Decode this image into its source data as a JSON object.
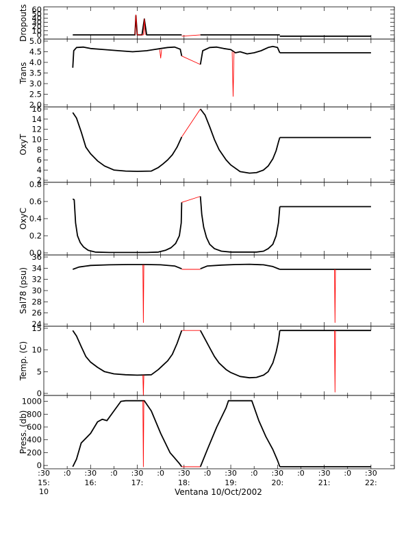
{
  "figure": {
    "footer": "Ventana 10/Oct/2002",
    "colors": {
      "data": "#000000",
      "gap": "#ff0000",
      "axes": "#000000"
    },
    "time_axis": {
      "ticks": [
        ":0 :30",
        ":0",
        ":30",
        ":0",
        ":30",
        ":0",
        ":30",
        ":0",
        ":30",
        ":0",
        ":30",
        ":0",
        ":30",
        ":0",
        ":30"
      ],
      "top_labels": [
        ":30",
        ":0",
        ":30",
        ":0",
        ":30",
        ":0",
        ":30",
        ":0",
        ":30",
        ":0",
        ":30",
        ":0",
        ":30",
        ":0",
        ":30"
      ],
      "hour_labels": [
        "15:\n10",
        "16:",
        "17:",
        "18:",
        "19:",
        "20:",
        "21:",
        "22:"
      ],
      "hour_label_line1": [
        "15:",
        "16:",
        "17:",
        "18:",
        "19:",
        "20:",
        "21:",
        "22:"
      ],
      "hour_label_line2": [
        "10",
        "",
        "",
        "",
        "",
        "",
        "",
        ""
      ],
      "range_hours": [
        15.0,
        22.5
      ]
    }
  },
  "chart_data": [
    {
      "type": "line",
      "ylabel": "Dropouts",
      "ylim": [
        -5,
        62
      ],
      "yticks": [
        0,
        10,
        20,
        30,
        40,
        50,
        60
      ],
      "series": [
        {
          "style": "data",
          "x": [
            15.62,
            16.0,
            16.5,
            16.95,
            16.97,
            17.0,
            17.05,
            17.1,
            17.15,
            17.2,
            17.5,
            17.95
          ],
          "y": [
            0,
            0,
            0,
            0,
            46,
            0,
            0,
            0,
            38,
            0,
            0,
            0
          ]
        },
        {
          "style": "gap",
          "x": [
            16.95,
            16.97,
            17.0,
            17.13,
            17.15,
            17.17
          ],
          "y": [
            0,
            48,
            0,
            0,
            38,
            0
          ]
        },
        {
          "style": "gap",
          "x": [
            17.95,
            18.35
          ],
          "y": [
            -3,
            0
          ]
        },
        {
          "style": "data",
          "x": [
            18.35,
            18.8,
            19.2,
            19.6,
            20.0,
            20.05
          ],
          "y": [
            0,
            0,
            0,
            0,
            0,
            0
          ]
        },
        {
          "style": "data",
          "x": [
            20.05,
            22.0
          ],
          "y": [
            -3,
            -3
          ]
        }
      ]
    },
    {
      "type": "line",
      "ylabel": "Trans",
      "ylim": [
        2.0,
        5.0
      ],
      "yticks": [
        2.0,
        2.5,
        3.0,
        3.5,
        4.0,
        4.5,
        5.0
      ],
      "series": [
        {
          "style": "data",
          "x": [
            15.62,
            15.64,
            15.7,
            15.85,
            16.0,
            16.3,
            16.6,
            16.9,
            17.2,
            17.35,
            17.5,
            17.65,
            17.8,
            17.92,
            17.95
          ],
          "y": [
            3.75,
            4.55,
            4.7,
            4.72,
            4.65,
            4.6,
            4.55,
            4.5,
            4.55,
            4.6,
            4.65,
            4.7,
            4.72,
            4.62,
            4.3
          ]
        },
        {
          "style": "gap",
          "x": [
            17.48,
            17.5,
            17.52
          ],
          "y": [
            4.6,
            4.2,
            4.6
          ]
        },
        {
          "style": "gap",
          "x": [
            17.95,
            18.35
          ],
          "y": [
            4.3,
            3.9
          ]
        },
        {
          "style": "data",
          "x": [
            18.35,
            18.4,
            18.55,
            18.7,
            18.85,
            19.0,
            19.1,
            19.2,
            19.35,
            19.5,
            19.65,
            19.8,
            19.9,
            20.0,
            20.05
          ],
          "y": [
            3.9,
            4.55,
            4.7,
            4.72,
            4.65,
            4.6,
            4.45,
            4.5,
            4.4,
            4.45,
            4.55,
            4.7,
            4.75,
            4.7,
            4.45
          ]
        },
        {
          "style": "gap",
          "x": [
            19.03,
            19.05,
            19.07
          ],
          "y": [
            4.5,
            2.4,
            4.5
          ]
        },
        {
          "style": "data",
          "x": [
            20.05,
            22.0
          ],
          "y": [
            4.45,
            4.45
          ]
        }
      ]
    },
    {
      "type": "line",
      "ylabel": "OxyT",
      "ylim": [
        2,
        16
      ],
      "yticks": [
        2,
        4,
        6,
        8,
        10,
        12,
        14,
        16
      ],
      "series": [
        {
          "style": "data",
          "x": [
            15.62,
            15.7,
            15.8,
            15.9,
            16.0,
            16.15,
            16.3,
            16.5,
            16.75,
            17.0,
            17.3,
            17.45,
            17.55,
            17.65,
            17.75,
            17.85,
            17.95
          ],
          "y": [
            15.3,
            14.2,
            11.5,
            8.5,
            7.2,
            5.8,
            4.8,
            4.0,
            3.8,
            3.75,
            3.8,
            4.5,
            5.2,
            6.0,
            7.0,
            8.5,
            10.5
          ]
        },
        {
          "style": "gap",
          "x": [
            17.95,
            18.35
          ],
          "y": [
            10.5,
            16.0
          ]
        },
        {
          "style": "data",
          "x": [
            18.35,
            18.45,
            18.55,
            18.65,
            18.75,
            18.9,
            19.0,
            19.2,
            19.4,
            19.55,
            19.7,
            19.8,
            19.9,
            19.97,
            20.02,
            20.05
          ],
          "y": [
            16.0,
            14.8,
            12.5,
            10.0,
            8.0,
            6.0,
            5.0,
            3.7,
            3.4,
            3.5,
            4.0,
            4.8,
            6.2,
            7.8,
            9.5,
            10.4
          ]
        },
        {
          "style": "data",
          "x": [
            20.05,
            22.0
          ],
          "y": [
            10.4,
            10.4
          ]
        }
      ]
    },
    {
      "type": "line",
      "ylabel": "OxyC",
      "ylim": [
        0.0,
        0.8
      ],
      "yticks": [
        0.0,
        0.2,
        0.4,
        0.6,
        0.8
      ],
      "series": [
        {
          "style": "data",
          "x": [
            15.62,
            15.65,
            15.68,
            15.72,
            15.78,
            15.85,
            15.95,
            16.1,
            16.4,
            16.8,
            17.2,
            17.45,
            17.6,
            17.72,
            17.82,
            17.9,
            17.94,
            17.95
          ],
          "y": [
            0.63,
            0.62,
            0.35,
            0.2,
            0.12,
            0.07,
            0.03,
            0.01,
            0.005,
            0.005,
            0.005,
            0.01,
            0.03,
            0.06,
            0.11,
            0.2,
            0.35,
            0.59
          ]
        },
        {
          "style": "gap",
          "x": [
            17.95,
            18.35
          ],
          "y": [
            0.59,
            0.66
          ]
        },
        {
          "style": "data",
          "x": [
            18.35,
            18.38,
            18.42,
            18.48,
            18.55,
            18.65,
            18.8,
            19.0,
            19.3,
            19.55,
            19.7,
            19.8,
            19.9,
            19.97,
            20.02,
            20.05
          ],
          "y": [
            0.66,
            0.45,
            0.3,
            0.18,
            0.1,
            0.05,
            0.02,
            0.01,
            0.01,
            0.01,
            0.02,
            0.05,
            0.1,
            0.2,
            0.35,
            0.54
          ]
        },
        {
          "style": "data",
          "x": [
            20.05,
            22.0
          ],
          "y": [
            0.54,
            0.54
          ]
        }
      ]
    },
    {
      "type": "line",
      "ylabel": "Sal78 (psu)",
      "ylim": [
        24,
        36
      ],
      "yticks": [
        24,
        26,
        28,
        30,
        32,
        34,
        36
      ],
      "series": [
        {
          "style": "data",
          "x": [
            15.62,
            15.75,
            16.0,
            16.4,
            16.8,
            17.2,
            17.5,
            17.8,
            17.95
          ],
          "y": [
            33.8,
            34.2,
            34.5,
            34.6,
            34.65,
            34.65,
            34.6,
            34.4,
            33.9
          ]
        },
        {
          "style": "gap",
          "x": [
            17.12,
            17.13,
            17.14
          ],
          "y": [
            34.6,
            24.3,
            34.6
          ]
        },
        {
          "style": "gap",
          "x": [
            17.95,
            18.35
          ],
          "y": [
            33.8,
            33.8
          ]
        },
        {
          "style": "data",
          "x": [
            18.35,
            18.5,
            18.8,
            19.1,
            19.4,
            19.7,
            19.9,
            20.05
          ],
          "y": [
            33.9,
            34.4,
            34.55,
            34.65,
            34.7,
            34.6,
            34.3,
            33.8
          ]
        },
        {
          "style": "data",
          "x": [
            20.05,
            22.0
          ],
          "y": [
            33.8,
            33.8
          ]
        },
        {
          "style": "gap",
          "x": [
            21.22,
            21.23,
            21.24
          ],
          "y": [
            33.8,
            24.3,
            33.8
          ]
        }
      ]
    },
    {
      "type": "line",
      "ylabel": "Temp. (C)",
      "ylim": [
        0,
        15
      ],
      "yticks": [
        0,
        5,
        10,
        15
      ],
      "series": [
        {
          "style": "data",
          "x": [
            15.62,
            15.7,
            15.8,
            15.9,
            16.0,
            16.15,
            16.3,
            16.5,
            16.75,
            17.0,
            17.3,
            17.45,
            17.55,
            17.65,
            17.75,
            17.85,
            17.95
          ],
          "y": [
            14.5,
            13.2,
            10.8,
            8.5,
            7.2,
            6.0,
            5.0,
            4.5,
            4.3,
            4.2,
            4.3,
            5.5,
            6.5,
            7.5,
            9.0,
            11.5,
            14.5
          ]
        },
        {
          "style": "gap",
          "x": [
            17.12,
            17.13,
            17.14
          ],
          "y": [
            4.2,
            -0.5,
            4.2
          ]
        },
        {
          "style": "gap",
          "x": [
            17.95,
            18.35
          ],
          "y": [
            14.5,
            14.5
          ]
        },
        {
          "style": "data",
          "x": [
            18.35,
            18.45,
            18.55,
            18.65,
            18.75,
            18.9,
            19.0,
            19.2,
            19.4,
            19.55,
            19.7,
            19.8,
            19.9,
            19.97,
            20.02,
            20.05
          ],
          "y": [
            14.5,
            12.5,
            10.5,
            8.5,
            7.0,
            5.5,
            4.8,
            3.9,
            3.6,
            3.7,
            4.2,
            5.0,
            7.0,
            9.5,
            12.0,
            14.5
          ]
        },
        {
          "style": "data",
          "x": [
            20.05,
            22.0
          ],
          "y": [
            14.5,
            14.5
          ]
        },
        {
          "style": "gap",
          "x": [
            21.22,
            21.23,
            21.24
          ],
          "y": [
            14.5,
            0.3,
            14.5
          ]
        }
      ]
    },
    {
      "type": "line",
      "ylabel": "Press. (db)",
      "ylim": [
        -20,
        1060
      ],
      "yticks": [
        0,
        200,
        400,
        600,
        800,
        1000
      ],
      "series": [
        {
          "style": "data",
          "x": [
            15.62,
            15.7,
            15.8,
            16.0,
            16.15,
            16.25,
            16.35,
            16.5,
            16.65,
            16.75,
            17.0,
            17.15,
            17.3,
            17.5,
            17.7,
            17.9,
            17.95
          ],
          "y": [
            -20,
            100,
            350,
            500,
            680,
            720,
            700,
            850,
            1000,
            1010,
            1010,
            1010,
            850,
            500,
            200,
            30,
            -20
          ]
        },
        {
          "style": "gap",
          "x": [
            17.12,
            17.13,
            17.14
          ],
          "y": [
            1010,
            -20,
            1010
          ]
        },
        {
          "style": "gap",
          "x": [
            17.95,
            18.35
          ],
          "y": [
            -20,
            -20
          ]
        },
        {
          "style": "data",
          "x": [
            18.35,
            18.5,
            18.7,
            18.9,
            18.95,
            19.2,
            19.45,
            19.6,
            19.75,
            19.9,
            20.0,
            20.05
          ],
          "y": [
            -20,
            250,
            600,
            900,
            1010,
            1010,
            1010,
            700,
            450,
            250,
            80,
            -20
          ]
        },
        {
          "style": "data",
          "x": [
            20.05,
            22.0
          ],
          "y": [
            -20,
            -20
          ]
        }
      ]
    }
  ]
}
